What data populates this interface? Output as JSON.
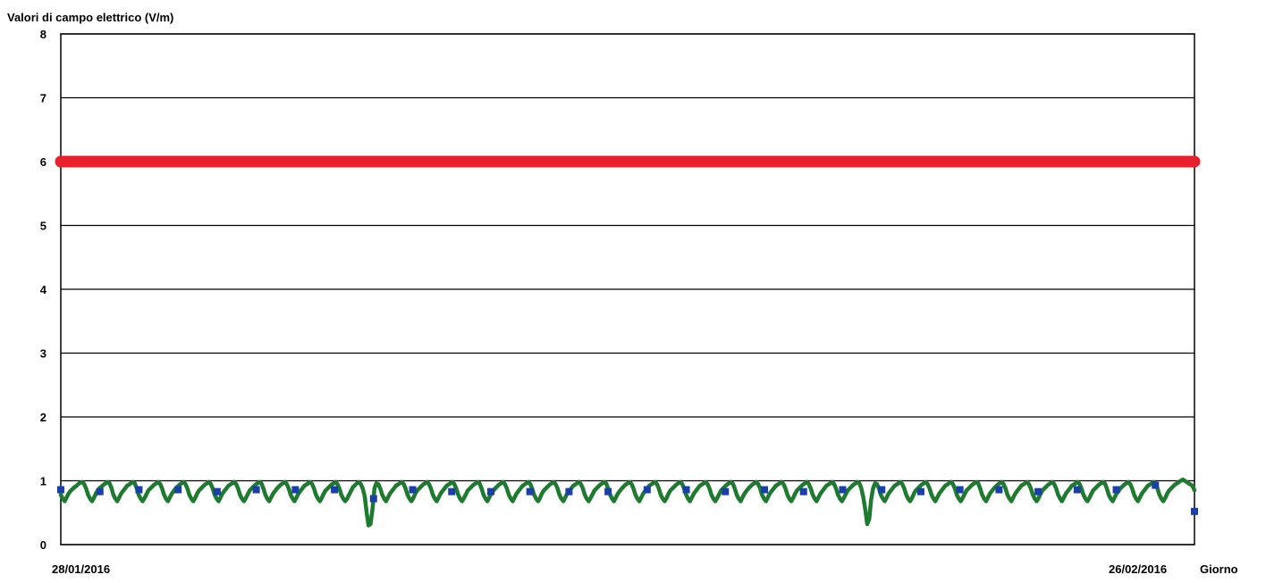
{
  "chart_data": {
    "type": "line",
    "title": "",
    "ylabel": "Valori di campo elettrico (V/m)",
    "xlabel": "Giorno",
    "x_tick_labels": [
      "28/01/2016",
      "26/02/2016"
    ],
    "x_range": [
      "28/01/2016",
      "26/02/2016"
    ],
    "ylim": [
      0,
      8
    ],
    "y_ticks": [
      0,
      1,
      2,
      3,
      4,
      5,
      6,
      7,
      8
    ],
    "grid": true,
    "legend": "none",
    "series": [
      {
        "role": "limit",
        "color": "#e8202e",
        "values": [
          6,
          6
        ]
      },
      {
        "role": "measurement",
        "color": "#1e7a2e",
        "marker_color": "#1a3fa8",
        "days": 29,
        "values": [
          0.78,
          0.72,
          0.68,
          0.74,
          0.8,
          0.84,
          0.87,
          0.9,
          0.92,
          0.95,
          0.97,
          0.98,
          0.95,
          0.88,
          0.78,
          0.72,
          0.68,
          0.73,
          0.8,
          0.85,
          0.89,
          0.91,
          0.94,
          0.96,
          0.98,
          0.96,
          0.89,
          0.78,
          0.72,
          0.68,
          0.74,
          0.8,
          0.84,
          0.88,
          0.92,
          0.94,
          0.96,
          0.98,
          0.96,
          0.88,
          0.78,
          0.72,
          0.68,
          0.73,
          0.79,
          0.85,
          0.88,
          0.91,
          0.94,
          0.96,
          0.98,
          0.95,
          0.88,
          0.78,
          0.72,
          0.68,
          0.74,
          0.8,
          0.84,
          0.88,
          0.91,
          0.94,
          0.96,
          0.98,
          0.95,
          0.88,
          0.78,
          0.72,
          0.68,
          0.73,
          0.8,
          0.85,
          0.88,
          0.91,
          0.94,
          0.96,
          0.98,
          0.95,
          0.88,
          0.78,
          0.72,
          0.68,
          0.74,
          0.8,
          0.84,
          0.88,
          0.92,
          0.94,
          0.96,
          0.98,
          0.95,
          0.88,
          0.78,
          0.72,
          0.68,
          0.73,
          0.79,
          0.85,
          0.88,
          0.91,
          0.94,
          0.96,
          0.98,
          0.96,
          0.88,
          0.78,
          0.72,
          0.68,
          0.74,
          0.8,
          0.84,
          0.88,
          0.91,
          0.94,
          0.96,
          0.98,
          0.95,
          0.88,
          0.78,
          0.72,
          0.68,
          0.74,
          0.8,
          0.84,
          0.88,
          0.92,
          0.94,
          0.96,
          0.98,
          0.95,
          0.88,
          0.78,
          0.72,
          0.68,
          0.73,
          0.8,
          0.85,
          0.88,
          0.91,
          0.94,
          0.96,
          0.98,
          0.95,
          0.88,
          0.78,
          0.72,
          0.68,
          0.72,
          0.78,
          0.84,
          0.9,
          0.93,
          0.96,
          0.98,
          0.95,
          0.88,
          0.76,
          0.5,
          0.3,
          0.32,
          0.55,
          0.88,
          0.96,
          0.95,
          0.88,
          0.78,
          0.72,
          0.68,
          0.74,
          0.8,
          0.84,
          0.88,
          0.92,
          0.94,
          0.96,
          0.98,
          0.95,
          0.88,
          0.78,
          0.72,
          0.68,
          0.73,
          0.8,
          0.85,
          0.88,
          0.91,
          0.94,
          0.96,
          0.98,
          0.95,
          0.88,
          0.78,
          0.72,
          0.68,
          0.74,
          0.8,
          0.84,
          0.88,
          0.92,
          0.94,
          0.96,
          0.98,
          0.95,
          0.88,
          0.78,
          0.72,
          0.68,
          0.73,
          0.79,
          0.85,
          0.88,
          0.91,
          0.94,
          0.96,
          0.98,
          0.96,
          0.88,
          0.78,
          0.72,
          0.68,
          0.74,
          0.8,
          0.84,
          0.88,
          0.91,
          0.94,
          0.96,
          0.98,
          0.95,
          0.88,
          0.78,
          0.72,
          0.68,
          0.74,
          0.8,
          0.84,
          0.88,
          0.92,
          0.94,
          0.96,
          0.98,
          0.95,
          0.88,
          0.78,
          0.72,
          0.68,
          0.73,
          0.8,
          0.85,
          0.88,
          0.91,
          0.94,
          0.96,
          0.98,
          0.95,
          0.88,
          0.78,
          0.72,
          0.68,
          0.74,
          0.8,
          0.84,
          0.88,
          0.92,
          0.94,
          0.96,
          0.98,
          0.95,
          0.88,
          0.78,
          0.72,
          0.68,
          0.73,
          0.79,
          0.85,
          0.88,
          0.91,
          0.94,
          0.96,
          0.98,
          0.96,
          0.88,
          0.78,
          0.72,
          0.68,
          0.74,
          0.8,
          0.84,
          0.88,
          0.91,
          0.94,
          0.96,
          0.98,
          0.95,
          0.88,
          0.78,
          0.72,
          0.68,
          0.74,
          0.8,
          0.84,
          0.88,
          0.92,
          0.94,
          0.96,
          0.98,
          0.95,
          0.88,
          0.78,
          0.72,
          0.68,
          0.73,
          0.8,
          0.85,
          0.88,
          0.91,
          0.94,
          0.96,
          0.98,
          0.95,
          0.88,
          0.78,
          0.72,
          0.68,
          0.74,
          0.8,
          0.84,
          0.88,
          0.92,
          0.94,
          0.96,
          0.98,
          0.95,
          0.88,
          0.78,
          0.72,
          0.68,
          0.73,
          0.79,
          0.85,
          0.88,
          0.91,
          0.94,
          0.96,
          0.98,
          0.96,
          0.88,
          0.78,
          0.72,
          0.68,
          0.74,
          0.8,
          0.84,
          0.88,
          0.91,
          0.94,
          0.96,
          0.98,
          0.95,
          0.88,
          0.78,
          0.72,
          0.68,
          0.74,
          0.8,
          0.84,
          0.88,
          0.92,
          0.94,
          0.96,
          0.98,
          0.95,
          0.88,
          0.78,
          0.72,
          0.68,
          0.73,
          0.8,
          0.85,
          0.88,
          0.91,
          0.94,
          0.96,
          0.98,
          0.95,
          0.88,
          0.78,
          0.72,
          0.68,
          0.74,
          0.8,
          0.84,
          0.88,
          0.92,
          0.94,
          0.96,
          0.98,
          0.95,
          0.88,
          0.78,
          0.72,
          0.68,
          0.73,
          0.79,
          0.85,
          0.88,
          0.91,
          0.94,
          0.96,
          0.98,
          0.96,
          0.88,
          0.74,
          0.55,
          0.32,
          0.4,
          0.7,
          0.88,
          0.96,
          0.95,
          0.88,
          0.78,
          0.72,
          0.68,
          0.74,
          0.8,
          0.84,
          0.88,
          0.92,
          0.94,
          0.96,
          0.98,
          0.95,
          0.88,
          0.78,
          0.72,
          0.68,
          0.73,
          0.8,
          0.85,
          0.88,
          0.91,
          0.94,
          0.96,
          0.98,
          0.95,
          0.88,
          0.78,
          0.72,
          0.68,
          0.74,
          0.8,
          0.84,
          0.88,
          0.92,
          0.94,
          0.96,
          0.98,
          0.95,
          0.88,
          0.78,
          0.72,
          0.68,
          0.73,
          0.79,
          0.85,
          0.88,
          0.91,
          0.94,
          0.96,
          0.98,
          0.96,
          0.88,
          0.78,
          0.72,
          0.68,
          0.74,
          0.8,
          0.84,
          0.88,
          0.91,
          0.94,
          0.96,
          0.98,
          0.95,
          0.88,
          0.78,
          0.72,
          0.68,
          0.74,
          0.8,
          0.84,
          0.88,
          0.92,
          0.94,
          0.96,
          0.98,
          0.95,
          0.88,
          0.78,
          0.72,
          0.68,
          0.73,
          0.8,
          0.85,
          0.88,
          0.91,
          0.94,
          0.96,
          0.98,
          0.95,
          0.88,
          0.78,
          0.72,
          0.68,
          0.74,
          0.8,
          0.84,
          0.88,
          0.92,
          0.94,
          0.96,
          0.98,
          0.95,
          0.88,
          0.78,
          0.72,
          0.68,
          0.73,
          0.79,
          0.85,
          0.88,
          0.91,
          0.94,
          0.96,
          0.98,
          0.96,
          0.88,
          0.78,
          0.72,
          0.68,
          0.74,
          0.8,
          0.84,
          0.88,
          0.91,
          0.94,
          0.96,
          0.98,
          0.95,
          0.88,
          0.78,
          0.72,
          0.68,
          0.74,
          0.8,
          0.84,
          0.88,
          0.92,
          0.94,
          0.96,
          0.98,
          0.95,
          0.88,
          0.78,
          0.72,
          0.68,
          0.73,
          0.8,
          0.85,
          0.88,
          0.91,
          0.94,
          0.96,
          0.98,
          1.0,
          1.02,
          1.0,
          0.98,
          0.96,
          0.94,
          0.92,
          0.85
        ],
        "markers": [
          {
            "day": 0,
            "value": 0.86
          },
          {
            "day": 1,
            "value": 0.83
          },
          {
            "day": 2,
            "value": 0.86
          },
          {
            "day": 3,
            "value": 0.86
          },
          {
            "day": 4,
            "value": 0.83
          },
          {
            "day": 5,
            "value": 0.86
          },
          {
            "day": 6,
            "value": 0.86
          },
          {
            "day": 7,
            "value": 0.86
          },
          {
            "day": 8,
            "value": 0.72
          },
          {
            "day": 9,
            "value": 0.86
          },
          {
            "day": 10,
            "value": 0.83
          },
          {
            "day": 11,
            "value": 0.83
          },
          {
            "day": 12,
            "value": 0.83
          },
          {
            "day": 13,
            "value": 0.83
          },
          {
            "day": 14,
            "value": 0.83
          },
          {
            "day": 15,
            "value": 0.86
          },
          {
            "day": 16,
            "value": 0.86
          },
          {
            "day": 17,
            "value": 0.83
          },
          {
            "day": 18,
            "value": 0.86
          },
          {
            "day": 19,
            "value": 0.83
          },
          {
            "day": 20,
            "value": 0.86
          },
          {
            "day": 21,
            "value": 0.86
          },
          {
            "day": 22,
            "value": 0.83
          },
          {
            "day": 23,
            "value": 0.86
          },
          {
            "day": 24,
            "value": 0.86
          },
          {
            "day": 25,
            "value": 0.83
          },
          {
            "day": 26,
            "value": 0.86
          },
          {
            "day": 27,
            "value": 0.86
          },
          {
            "day": 28,
            "value": 0.93
          },
          {
            "day": 29,
            "value": 0.52
          }
        ]
      }
    ]
  }
}
